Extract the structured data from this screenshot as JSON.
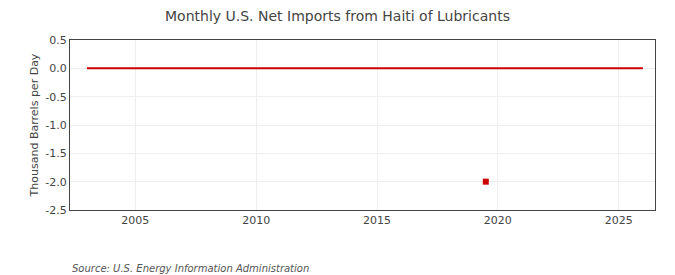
{
  "chart_data": {
    "type": "line",
    "title": "Monthly U.S. Net Imports from Haiti of Lubricants",
    "ylabel": "Thousand Barrels per Day",
    "annotations": [
      "Source: U.S. Energy Information Administration"
    ],
    "series": [
      {
        "type": "line",
        "color": "#CC0000",
        "line_style": "solid",
        "x": [
          2003.0,
          2026.0
        ],
        "values": [
          0.0,
          0.0
        ]
      },
      {
        "type": "scatter",
        "color": "#CC0000",
        "marker": "square",
        "x": [
          2019.5
        ],
        "values": [
          -2.0
        ]
      }
    ],
    "xlim": [
      2002.3,
      2026.5
    ],
    "xticks": [
      2005,
      2010,
      2015,
      2020,
      2025
    ],
    "ylim": [
      -2.5,
      0.5
    ],
    "yticks": [
      0.5,
      {
        "value": 0.0,
        "label": "0.0"
      },
      -0.5,
      {
        "value": -1.0,
        "label": "-1.0"
      },
      -1.5,
      {
        "value": -2.0,
        "label": "-2.0"
      },
      -2.5
    ],
    "grid": true
  }
}
